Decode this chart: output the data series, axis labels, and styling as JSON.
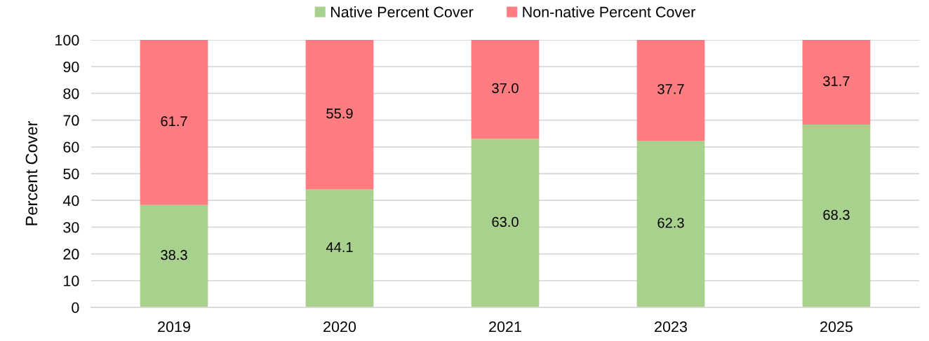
{
  "chart_data": {
    "type": "bar",
    "stacked": true,
    "ylabel": "Percent Cover",
    "categories": [
      "2019",
      "2020",
      "2021",
      "2023",
      "2025"
    ],
    "series": [
      {
        "name": "Native Percent Cover",
        "color": "#a9d18e",
        "values": [
          38.3,
          44.1,
          63.0,
          62.3,
          68.3
        ],
        "value_labels": [
          "38.3",
          "44.1",
          "63.0",
          "62.3",
          "68.3"
        ]
      },
      {
        "name": "Non-native Percent Cover",
        "color": "#ff7c80",
        "values": [
          61.7,
          55.9,
          37.0,
          37.7,
          31.7
        ],
        "value_labels": [
          "61.7",
          "55.9",
          "37.0",
          "37.7",
          "31.7"
        ]
      }
    ],
    "ylim": [
      0,
      100
    ],
    "yticks": [
      0,
      10,
      20,
      30,
      40,
      50,
      60,
      70,
      80,
      90,
      100
    ],
    "grid": "y",
    "legend": "top"
  }
}
